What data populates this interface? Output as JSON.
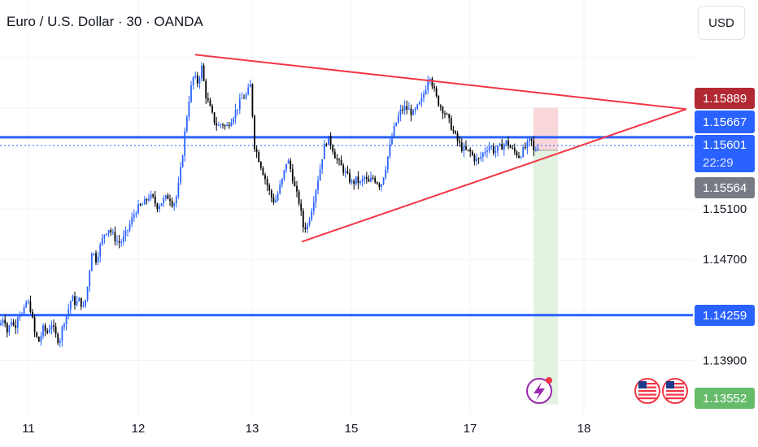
{
  "header": {
    "title": "Euro / U.S. Dollar · 30 · OANDA",
    "currency_button": "USD"
  },
  "colors": {
    "bull": "#2962ff",
    "bear": "#000000",
    "level_line": "#2962ff",
    "trendline": "#f23645",
    "label_red": "#b22833",
    "label_blue": "#2962ff",
    "label_gray": "#787b86",
    "label_green": "#66bb6a",
    "target_zone": "#e3f2e1",
    "stop_zone": "#f8d6da"
  },
  "chart_data": {
    "type": "candlestick",
    "instrument": "EURUSD",
    "timeframe": "30",
    "x_tick_labels": [
      "11",
      "12",
      "13",
      "15",
      "17",
      "18"
    ],
    "y_tick_labels": [
      "1.15100",
      "1.14700",
      "1.13900"
    ],
    "y_range": [
      1.1315,
      1.165
    ],
    "price_labels": {
      "upper_trend": "1.15889",
      "resistance": "1.15667",
      "last_price": "1.15601",
      "countdown": "22:29",
      "entry": "1.15564",
      "support": "1.14259",
      "target": "1.13552"
    },
    "horizontal_levels": [
      1.15667,
      1.14259
    ],
    "last_price": 1.15601,
    "triangle": {
      "upper_trendline": [
        {
          "x": 12.5,
          "y": 1.1632
        },
        {
          "x": 18.9,
          "y": 1.15889
        }
      ],
      "lower_trendline": [
        {
          "x": 14.0,
          "y": 1.1484
        },
        {
          "x": 18.9,
          "y": 1.15889
        }
      ]
    },
    "position": {
      "entry": 1.15564,
      "stop": 1.159,
      "target": 1.13552
    },
    "close_path": [
      [
        0,
        1.1418
      ],
      [
        5,
        1.1426
      ],
      [
        9,
        1.1412
      ],
      [
        14,
        1.1422
      ],
      [
        18,
        1.1415
      ],
      [
        23,
        1.143
      ],
      [
        28,
        1.1425
      ],
      [
        33,
        1.1438
      ],
      [
        38,
        1.143
      ],
      [
        43,
        1.141
      ],
      [
        48,
        1.1405
      ],
      [
        53,
        1.1415
      ],
      [
        58,
        1.1412
      ],
      [
        63,
        1.142
      ],
      [
        68,
        1.141
      ],
      [
        73,
        1.1405
      ],
      [
        78,
        1.142
      ],
      [
        83,
        1.1428
      ],
      [
        88,
        1.144
      ],
      [
        93,
        1.1435
      ],
      [
        98,
        1.1438
      ],
      [
        103,
        1.143
      ],
      [
        108,
        1.145
      ],
      [
        113,
        1.1478
      ],
      [
        118,
        1.147
      ],
      [
        123,
        1.148
      ],
      [
        128,
        1.149
      ],
      [
        133,
        1.1495
      ],
      [
        138,
        1.149
      ],
      [
        143,
        1.1485
      ],
      [
        148,
        1.1483
      ],
      [
        153,
        1.1488
      ],
      [
        158,
        1.1495
      ],
      [
        163,
        1.1503
      ],
      [
        168,
        1.151
      ],
      [
        173,
        1.1512
      ],
      [
        178,
        1.1515
      ],
      [
        183,
        1.152
      ],
      [
        188,
        1.1518
      ],
      [
        193,
        1.1512
      ],
      [
        198,
        1.1515
      ],
      [
        203,
        1.1518
      ],
      [
        208,
        1.152
      ],
      [
        213,
        1.1513
      ],
      [
        218,
        1.1522
      ],
      [
        223,
        1.1545
      ],
      [
        228,
        1.1575
      ],
      [
        233,
        1.16
      ],
      [
        238,
        1.1615
      ],
      [
        243,
        1.161
      ],
      [
        248,
        1.1622
      ],
      [
        253,
        1.16
      ],
      [
        258,
        1.159
      ],
      [
        263,
        1.158
      ],
      [
        268,
        1.1575
      ],
      [
        273,
        1.1578
      ],
      [
        278,
        1.1574
      ],
      [
        283,
        1.158
      ],
      [
        288,
        1.1585
      ],
      [
        293,
        1.1592
      ],
      [
        298,
        1.1598
      ],
      [
        303,
        1.16
      ],
      [
        308,
        1.1608
      ],
      [
        313,
        1.156
      ],
      [
        318,
        1.155
      ],
      [
        323,
        1.154
      ],
      [
        328,
        1.153
      ],
      [
        333,
        1.152
      ],
      [
        338,
        1.1515
      ],
      [
        343,
        1.1525
      ],
      [
        348,
        1.1535
      ],
      [
        353,
        1.155
      ],
      [
        358,
        1.154
      ],
      [
        363,
        1.1525
      ],
      [
        368,
        1.1515
      ],
      [
        373,
        1.1495
      ],
      [
        378,
        1.1497
      ],
      [
        383,
        1.151
      ],
      [
        388,
        1.1525
      ],
      [
        393,
        1.154
      ],
      [
        398,
        1.1558
      ],
      [
        403,
        1.1566
      ],
      [
        408,
        1.156
      ],
      [
        413,
        1.155
      ],
      [
        418,
        1.1545
      ],
      [
        423,
        1.154
      ],
      [
        428,
        1.1535
      ],
      [
        433,
        1.153
      ],
      [
        438,
        1.1533
      ],
      [
        443,
        1.153
      ],
      [
        448,
        1.1535
      ],
      [
        453,
        1.153
      ],
      [
        458,
        1.1535
      ],
      [
        463,
        1.1532
      ],
      [
        468,
        1.1528
      ],
      [
        473,
        1.154
      ],
      [
        478,
        1.1555
      ],
      [
        483,
        1.157
      ],
      [
        488,
        1.158
      ],
      [
        493,
        1.1588
      ],
      [
        498,
        1.159
      ],
      [
        503,
        1.1588
      ],
      [
        508,
        1.1585
      ],
      [
        513,
        1.159
      ],
      [
        518,
        1.1595
      ],
      [
        523,
        1.1605
      ],
      [
        528,
        1.1618
      ],
      [
        533,
        1.1605
      ],
      [
        538,
        1.1595
      ],
      [
        543,
        1.159
      ],
      [
        548,
        1.1585
      ],
      [
        553,
        1.1578
      ],
      [
        558,
        1.157
      ],
      [
        563,
        1.1563
      ],
      [
        568,
        1.1558
      ],
      [
        573,
        1.1556
      ],
      [
        578,
        1.1555
      ],
      [
        583,
        1.155
      ],
      [
        588,
        1.1548
      ],
      [
        593,
        1.1553
      ],
      [
        598,
        1.1558
      ],
      [
        603,
        1.156
      ],
      [
        608,
        1.1555
      ],
      [
        613,
        1.1558
      ],
      [
        618,
        1.156
      ],
      [
        623,
        1.1563
      ],
      [
        628,
        1.1558
      ],
      [
        633,
        1.1555
      ],
      [
        638,
        1.1552
      ],
      [
        643,
        1.1556
      ],
      [
        648,
        1.156
      ],
      [
        653,
        1.1565
      ],
      [
        656,
        1.1555
      ],
      [
        659,
        1.1558
      ],
      [
        662,
        1.156
      ]
    ]
  }
}
